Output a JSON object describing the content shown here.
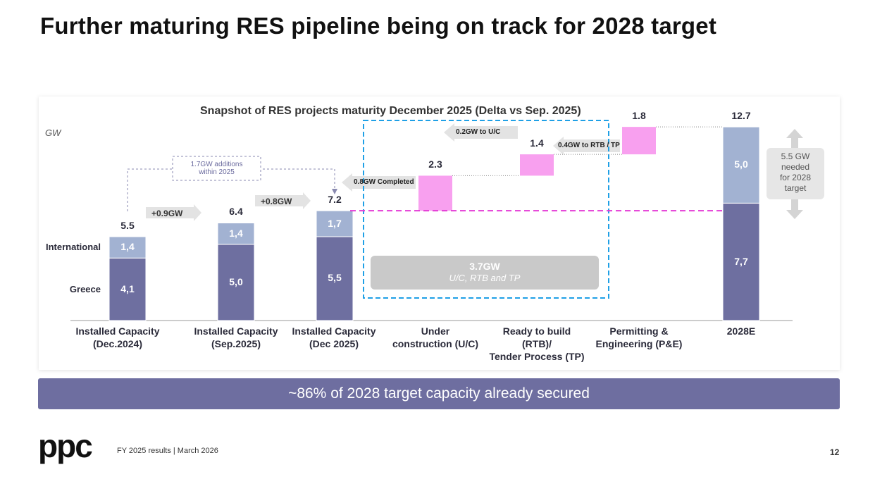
{
  "title": "Further maturing RES pipeline being on track for 2028 target",
  "chart_data": {
    "type": "waterfall",
    "title": "Snapshot of RES projects maturity December 2025 (Delta vs Sep. 2025)",
    "y_label": "GW",
    "categories": [
      "Installed Capacity\n(Dec.2024)",
      "Installed Capacity\n(Sep.2025)",
      "Installed Capacity\n(Dec 2025)",
      "Under\nconstruction (U/C)",
      "Ready to build\n(RTB)/\nTender Process (TP)",
      "Permitting &\nEngineering (P&E)",
      "2028E"
    ],
    "series": [
      {
        "name": "Greece",
        "color": "#6e6fa0",
        "values": [
          4.1,
          5.0,
          5.5,
          null,
          null,
          null,
          7.7
        ],
        "value_labels": [
          "4,1",
          "5,0",
          "5,5",
          null,
          null,
          null,
          "7,7"
        ]
      },
      {
        "name": "International",
        "color": "#a2b2d2",
        "values": [
          1.4,
          1.4,
          1.7,
          null,
          null,
          null,
          5.0
        ],
        "value_labels": [
          "1,4",
          "1,4",
          "1,7",
          null,
          null,
          null,
          "5,0"
        ]
      }
    ],
    "increments": {
      "color": "#f8a0ef",
      "values": [
        null,
        null,
        null,
        2.3,
        1.4,
        1.8,
        null
      ]
    },
    "totals": [
      5.5,
      6.4,
      7.2,
      null,
      null,
      null,
      12.7
    ],
    "ylim": [
      0,
      14
    ],
    "annotations": {
      "step_1": "+0.9GW",
      "step_2": "+0.8GW",
      "additions": "1.7GW additions\nwithin 2025",
      "completed": "0.8GW Completed",
      "to_rtb": "0.4GW to RTB / TP",
      "to_uc": "0.2GW to U/C",
      "secured_value": "3.7GW",
      "secured_text": "U/C, RTB and TP",
      "needed": "5.5 GW\nneeded\nfor 2028\ntarget"
    }
  },
  "banner": "~86% of 2028 target capacity already secured",
  "footer": {
    "logo": "ppc",
    "text": "FY 2025 results | March 2026",
    "page": "12"
  }
}
